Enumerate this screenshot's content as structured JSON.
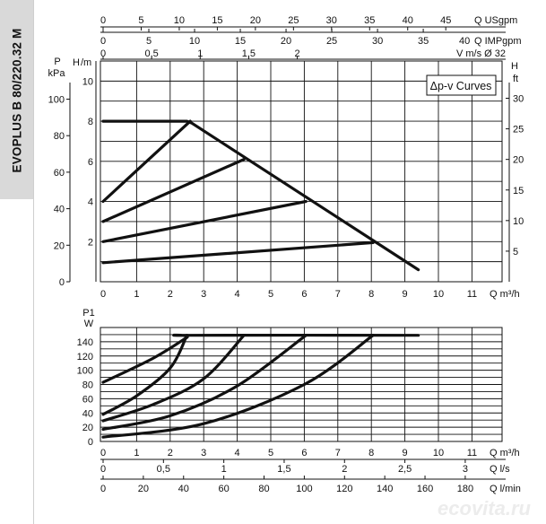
{
  "product_title": "EVOPLUS B 80/220.32 M",
  "watermark": "ecovita.ru",
  "colors": {
    "curve": "#111111",
    "grid": "#111111",
    "sidebar": "#d9d9d9"
  },
  "chart_data": [
    {
      "type": "line",
      "title": "",
      "legend_label": "Δp-v Curves",
      "legend_position": "top-right",
      "grid": true,
      "xlabel": "Q m³/h",
      "xlim": [
        0,
        12
      ],
      "x_ticks": [
        "0",
        "1",
        "2",
        "3",
        "4",
        "5",
        "6",
        "7",
        "8",
        "9",
        "10",
        "11"
      ],
      "y_left_h_label": "H m",
      "y_left_h_label_parts": [
        "H",
        "/m"
      ],
      "ylim_h": [
        0,
        11
      ],
      "y_h_ticks": [
        "2",
        "4",
        "6",
        "8",
        "10"
      ],
      "y_left_p_label": "P kPa",
      "y_left_p_label_parts": [
        "P",
        "kPa"
      ],
      "y_p_ticks": [
        "0",
        "20",
        "40",
        "60",
        "80",
        "100"
      ],
      "y_right_label": "H ft",
      "y_right_label_parts": [
        "H",
        "ft"
      ],
      "y_ft_ticks": [
        "5",
        "10",
        "15",
        "20",
        "25",
        "30"
      ],
      "top_axes": [
        {
          "label": "Q USgpm",
          "ticks": [
            "0",
            "5",
            "10",
            "15",
            "20",
            "25",
            "30",
            "35",
            "40",
            "45"
          ]
        },
        {
          "label": "Q IMPgpm",
          "prefix": "40",
          "ticks": [
            "0",
            "5",
            "10",
            "15",
            "20",
            "25",
            "30",
            "35"
          ]
        },
        {
          "label": "V m/s Ø 32",
          "ticks": [
            "0",
            "0,5",
            "1",
            "1,5",
            "2"
          ]
        }
      ],
      "series": [
        {
          "x": [
            0,
            2.5,
            2.65,
            9.4
          ],
          "y": [
            8,
            8,
            7.9,
            0.6
          ]
        },
        {
          "x": [
            0,
            2.6
          ],
          "y": [
            4,
            8
          ]
        },
        {
          "x": [
            0,
            4.2
          ],
          "y": [
            3,
            6.1
          ]
        },
        {
          "x": [
            0,
            6.05
          ],
          "y": [
            2,
            4
          ]
        },
        {
          "x": [
            0,
            8.05
          ],
          "y": [
            0.95,
            1.95
          ]
        }
      ]
    },
    {
      "type": "line",
      "title": "",
      "grid": true,
      "ylabel": "P1 W",
      "ylabel_parts": [
        "P1",
        "W"
      ],
      "ylim": [
        0,
        160
      ],
      "y_ticks": [
        "0",
        "20",
        "40",
        "60",
        "80",
        "100",
        "120",
        "140"
      ],
      "xlabel": "Q m³/h",
      "xlim": [
        0,
        12
      ],
      "x_ticks": [
        "0",
        "1",
        "2",
        "3",
        "4",
        "5",
        "6",
        "7",
        "8",
        "9",
        "10",
        "11"
      ],
      "bottom_axes": [
        {
          "label": "Q l/s",
          "ticks": [
            "0",
            "0,5",
            "1",
            "1,5",
            "2",
            "2,5",
            "3"
          ]
        },
        {
          "label": "Q l/min",
          "ticks": [
            "0",
            "20",
            "40",
            "60",
            "80",
            "100",
            "120",
            "140",
            "160",
            "180"
          ]
        }
      ],
      "series": [
        {
          "x": [
            0,
            1.5,
            2.5,
            2.6,
            9.4
          ],
          "y": [
            83,
            117,
            146,
            149,
            149
          ]
        },
        {
          "x": [
            0,
            1,
            2,
            2.5
          ],
          "y": [
            38,
            64,
            103,
            149
          ]
        },
        {
          "x": [
            0,
            1.5,
            3,
            4.2
          ],
          "y": [
            29,
            52,
            88,
            149
          ]
        },
        {
          "x": [
            0,
            2,
            4,
            6.05
          ],
          "y": [
            17,
            36,
            78,
            149
          ]
        },
        {
          "x": [
            0,
            3,
            6,
            8.05
          ],
          "y": [
            6,
            25,
            80,
            149
          ]
        }
      ]
    }
  ]
}
